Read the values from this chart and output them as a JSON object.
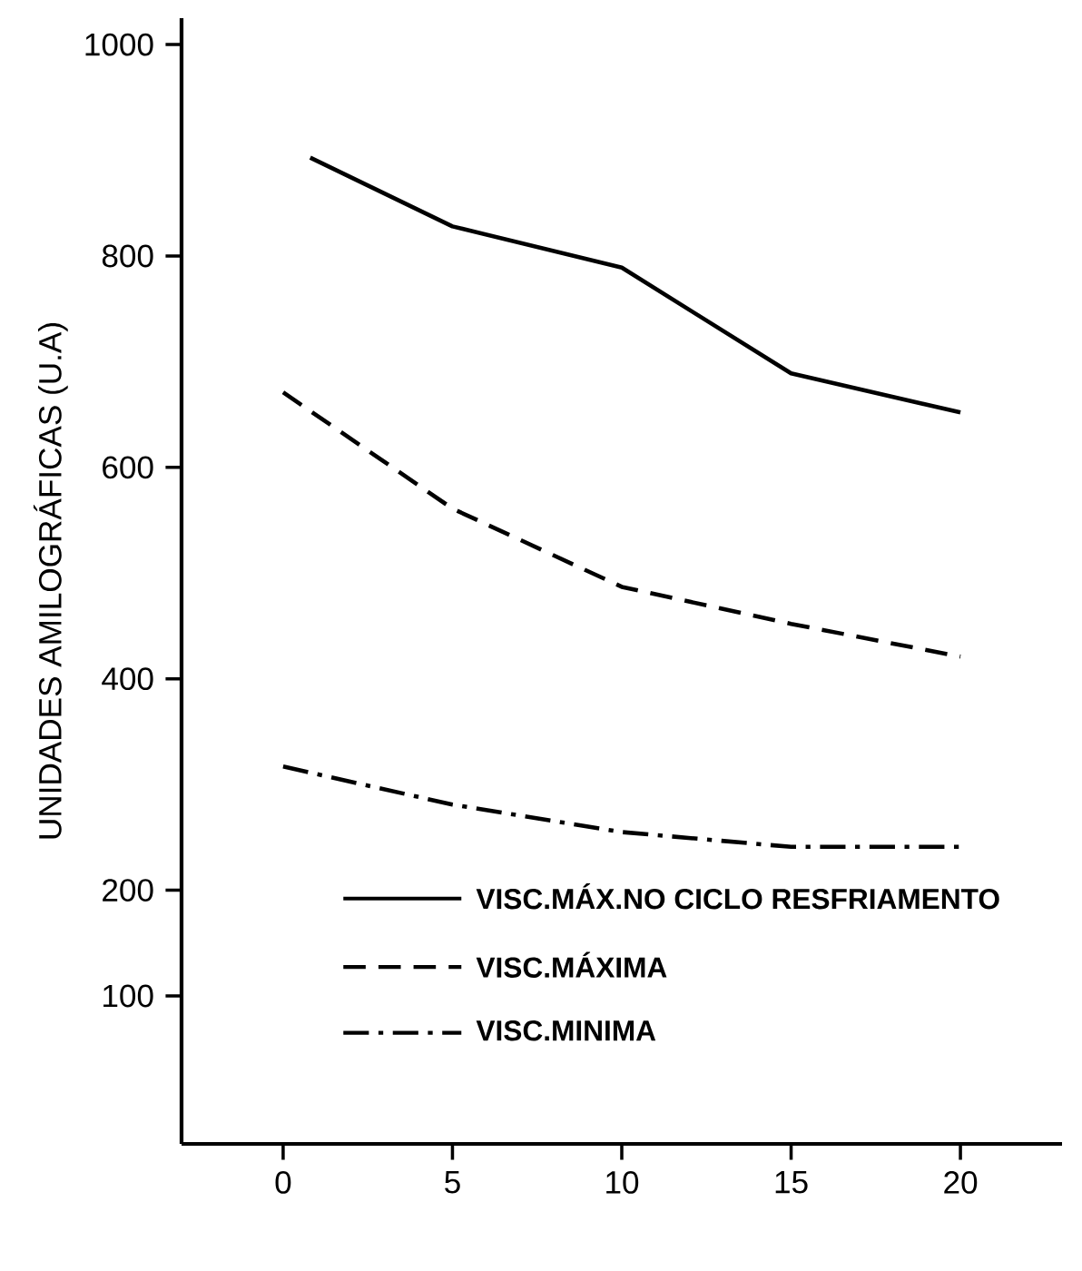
{
  "chart_data": {
    "type": "line",
    "ylabel": "UNIDADES  AMILOGRÁFICAS  (U.A)",
    "x": [
      0,
      5,
      10,
      15,
      20
    ],
    "series": [
      {
        "name": "VISC.MÁX.NO CICLO RESFRIAMENTO",
        "color": "#000000",
        "line_style": "solid",
        "x": [
          0.8,
          5,
          10,
          15,
          20
        ],
        "values": [
          893,
          828,
          789,
          689,
          652
        ]
      },
      {
        "name": "VISC.MÁXIMA",
        "color": "#000000",
        "line_style": "dashed",
        "values": [
          671,
          561,
          487,
          452,
          421
        ]
      },
      {
        "name": "VISC.MINIMA",
        "color": "#000000",
        "line_style": "dashdot",
        "values": [
          317,
          281,
          255,
          241,
          241
        ]
      }
    ],
    "xlim": [
      -3,
      23
    ],
    "ylim": [
      -40,
      1025
    ],
    "xticks": [
      0,
      5,
      10,
      15,
      20
    ],
    "yticks": [
      100,
      200,
      400,
      600,
      800,
      1000
    ],
    "grid": false,
    "legend": "bottom",
    "marker": "none"
  }
}
